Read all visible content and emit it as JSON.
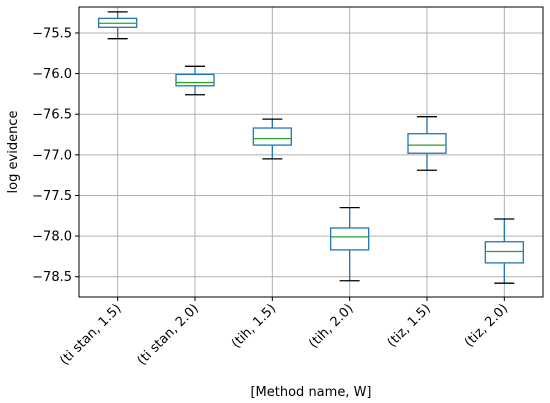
{
  "chart_data": {
    "type": "box",
    "title": "",
    "xlabel": "[Method name, W]",
    "ylabel": "log evidence",
    "ylim": [
      -78.75,
      -75.18
    ],
    "yticks": [
      -75.5,
      -76.0,
      -76.5,
      -77.0,
      -77.5,
      -78.0,
      -78.5
    ],
    "ytick_labels": [
      "−75.5",
      "−76.0",
      "−76.5",
      "−77.0",
      "−77.5",
      "−78.0",
      "−78.5"
    ],
    "grid": true,
    "categories": [
      "(ti stan, 1.5)",
      "(ti stan, 2.0)",
      "(tih, 1.5)",
      "(tih, 2.0)",
      "(tiz, 1.5)",
      "(tiz, 2.0)"
    ],
    "boxes": [
      {
        "whisker_low": -75.57,
        "q1": -75.43,
        "median": -75.38,
        "q3": -75.32,
        "whisker_high": -75.24
      },
      {
        "whisker_low": -76.26,
        "q1": -76.15,
        "median": -76.11,
        "q3": -76.01,
        "whisker_high": -75.91
      },
      {
        "whisker_low": -77.05,
        "q1": -76.88,
        "median": -76.8,
        "q3": -76.67,
        "whisker_high": -76.56
      },
      {
        "whisker_low": -78.55,
        "q1": -78.17,
        "median": -78.01,
        "q3": -77.9,
        "whisker_high": -77.65
      },
      {
        "whisker_low": -77.19,
        "q1": -76.98,
        "median": -76.88,
        "q3": -76.74,
        "whisker_high": -76.53
      },
      {
        "whisker_low": -78.58,
        "q1": -78.33,
        "median": -78.19,
        "q3": -78.07,
        "whisker_high": -77.79
      }
    ],
    "colors": {
      "box": "#1f77b4",
      "median": "#2ca02c",
      "whisker": "#1f77b4",
      "cap": "#000000",
      "grid": "#b0b0b0",
      "axes": "#000000"
    }
  }
}
